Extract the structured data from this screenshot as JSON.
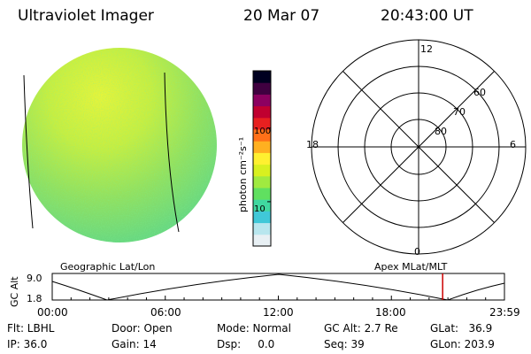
{
  "header": {
    "instrument": "Ultraviolet Imager",
    "date": "20 Mar 07",
    "time": "20:43:00 UT"
  },
  "colorbar": {
    "unit_label": "photon cm⁻²s⁻¹",
    "tick_labels": [
      "100",
      "10"
    ],
    "tick_values": [
      100,
      10
    ],
    "range": [
      2.5,
      600
    ],
    "scale": "log",
    "colors": [
      "#e8f0f4",
      "#b8e6ee",
      "#40c8d8",
      "#40d8a0",
      "#60e060",
      "#a0ea40",
      "#d8f020",
      "#fff030",
      "#ffb020",
      "#ff7018",
      "#e82020",
      "#c00030",
      "#8c0060",
      "#400040",
      "#000020"
    ]
  },
  "polar_plot": {
    "lat_labels": [
      "60",
      "70",
      "80"
    ],
    "mlt_labels": [
      "12",
      "18",
      "6",
      "0"
    ]
  },
  "altitude_plot": {
    "left_title": "Geographic Lat/Lon",
    "right_title": "Apex MLat/MLT",
    "ylabel": "GC Alt",
    "ytick_labels": [
      "9.0",
      "1.8"
    ],
    "xtick_labels": [
      "00:00",
      "06:00",
      "12:00",
      "18:00",
      "23:59"
    ],
    "current_time_hours": 20.72,
    "marker_color": "#cc0000"
  },
  "info": {
    "flt": "Flt: LBHL",
    "ip": "IP: 36.0",
    "door": "Door: Open",
    "gain": "Gain: 14",
    "mode": "Mode: Normal",
    "dsp": "Dsp:     0.0",
    "gcalt": "GC Alt: 2.7 Re",
    "seq": "Seq: 39",
    "glat": "GLat:   36.9",
    "glon": "GLon: 203.9"
  }
}
